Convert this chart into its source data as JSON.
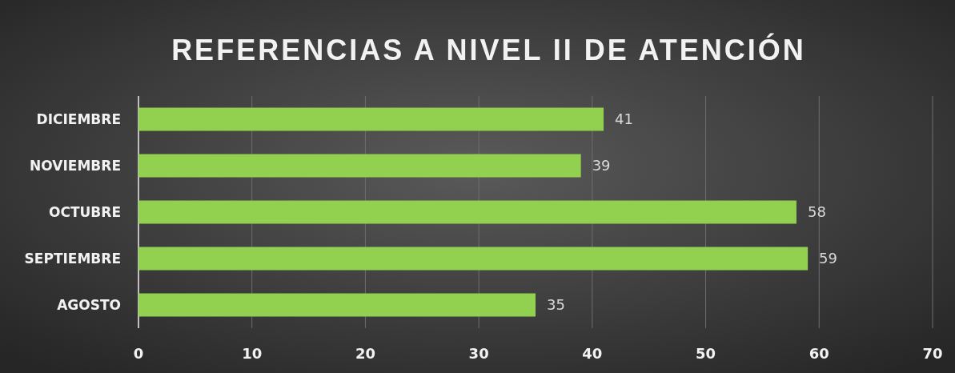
{
  "chart_data": {
    "type": "bar",
    "orientation": "horizontal",
    "title": "REFERENCIAS A NIVEL II DE ATENCIÓN",
    "categories": [
      "DICIEMBRE",
      "NOVIEMBRE",
      "OCTUBRE",
      "SEPTIEMBRE",
      "AGOSTO"
    ],
    "values": [
      41,
      39,
      58,
      59,
      35
    ],
    "color": "#92d050",
    "xlim": [
      0,
      70
    ],
    "xticks": [
      0,
      10,
      20,
      30,
      40,
      50,
      60,
      70
    ],
    "grid": "x",
    "data_labels": true
  }
}
